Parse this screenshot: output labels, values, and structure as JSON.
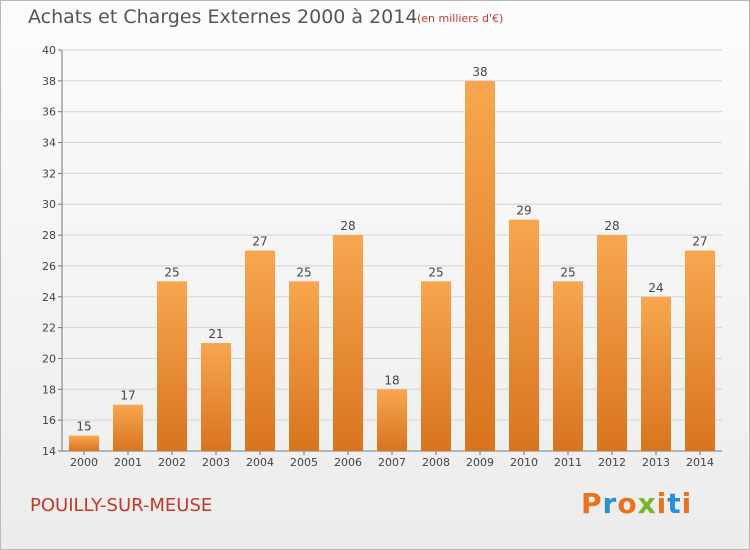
{
  "header": {
    "title": "Achats et Charges Externes 2000 à 2014",
    "subtitle": "(en milliers d'€)"
  },
  "footer": {
    "town": "POUILLY-SUR-MEUSE",
    "logo": "Proxiti",
    "logo_colors": [
      "#e8731a",
      "#2a8fd6",
      "#e8731a",
      "#76b82a",
      "#e8731a",
      "#2a8fd6",
      "#e8731a"
    ]
  },
  "colors": {
    "bar_top": "#f7a650",
    "bar_bottom": "#d9741e",
    "title": "#555555",
    "accent": "#c0392b"
  },
  "chart_data": {
    "type": "bar",
    "categories": [
      "2000",
      "2001",
      "2002",
      "2003",
      "2004",
      "2005",
      "2006",
      "2007",
      "2008",
      "2009",
      "2010",
      "2011",
      "2012",
      "2013",
      "2014"
    ],
    "values": [
      15,
      17,
      25,
      21,
      27,
      25,
      28,
      18,
      25,
      38,
      29,
      25,
      28,
      24,
      27
    ],
    "ylim": [
      14,
      40
    ],
    "yticks": [
      14,
      16,
      18,
      20,
      22,
      24,
      26,
      28,
      30,
      32,
      34,
      36,
      38,
      40
    ],
    "grid": true,
    "legend": false
  }
}
